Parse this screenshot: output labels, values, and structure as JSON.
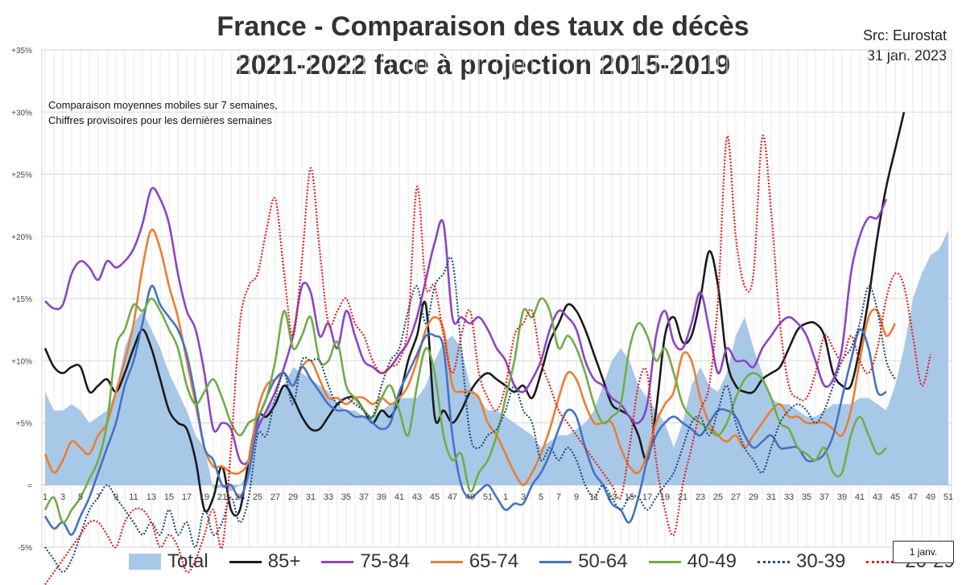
{
  "title_line1": "France - Comparaison des taux de décès",
  "title_line2": "2021-2022 face à projection 2015-2019",
  "source_line1": "Src: Eurostat",
  "source_line2": "31 jan. 2023",
  "note_line1": "Comparaison moyennes mobiles sur 7 semaines,",
  "note_line2": "Chiffres provisoires pour les dernières semaines",
  "year_marker": "1 janv.",
  "chart_data": {
    "type": "line",
    "y_unit": "%",
    "ylim": [
      -5,
      35
    ],
    "y_ticks": [
      {
        "v": 35,
        "label": "+35%"
      },
      {
        "v": 30,
        "label": "+30%"
      },
      {
        "v": 25,
        "label": "+25%"
      },
      {
        "v": 20,
        "label": "+20%"
      },
      {
        "v": 15,
        "label": "+15%"
      },
      {
        "v": 10,
        "label": "+10%"
      },
      {
        "v": 5,
        "label": "+5%"
      },
      {
        "v": 0,
        "label": "="
      },
      {
        "v": -5,
        "label": "-5%"
      }
    ],
    "x_tick_labels": [
      "1",
      "3",
      "5",
      "7",
      "9",
      "11",
      "13",
      "15",
      "17",
      "19",
      "21",
      "23",
      "25",
      "27",
      "29",
      "31",
      "33",
      "35",
      "37",
      "39",
      "41",
      "43",
      "45",
      "47",
      "49",
      "51",
      "1",
      "3",
      "5",
      "7",
      "9",
      "11",
      "13",
      "15",
      "17",
      "19",
      "21",
      "23",
      "25",
      "27",
      "29",
      "31",
      "33",
      "35",
      "37",
      "39",
      "41",
      "43",
      "45",
      "47",
      "49",
      "51"
    ],
    "grid": true,
    "legend_position": "bottom",
    "series": [
      {
        "name": "Total",
        "kind": "area",
        "color": "#a8c8e8",
        "values": [
          7.5,
          6,
          6,
          6.5,
          6,
          5,
          5.5,
          6,
          7.5,
          11,
          13,
          14,
          12.5,
          11,
          9,
          7.5,
          6,
          4,
          3,
          -0.3,
          -0.2,
          -0.5,
          0,
          1,
          5,
          6,
          7,
          8,
          9.5,
          9,
          8.5,
          8,
          7.5,
          6.5,
          6,
          6,
          5.5,
          5.5,
          6,
          6.5,
          7,
          7,
          7,
          8,
          10,
          11.5,
          12,
          11,
          8,
          7,
          6,
          6,
          5.5,
          5,
          4.5,
          4,
          3,
          3.5,
          4,
          4,
          4.5,
          5,
          6,
          8,
          10,
          11,
          10,
          8,
          7,
          6,
          5,
          3,
          5,
          8,
          9.5,
          8,
          7.5,
          9,
          12,
          13.5,
          11,
          9,
          7,
          6.5,
          6.5,
          6,
          5.5,
          5.5,
          6,
          6.5,
          6.5,
          6.5,
          7,
          7,
          6.5,
          6,
          8,
          11,
          15,
          17,
          18.5,
          19,
          20.5
        ]
      },
      {
        "name": "85+",
        "kind": "line",
        "color": "#1a1a1a",
        "dash": "",
        "values": [
          11,
          9.5,
          9,
          9.5,
          9.5,
          7.5,
          8,
          8.5,
          7.5,
          9,
          11,
          12.5,
          11,
          8.5,
          6,
          5,
          4.5,
          2,
          -2,
          -1,
          1.5,
          -2,
          -2,
          2,
          5.5,
          5.5,
          6.5,
          8,
          7,
          5.5,
          4.5,
          4.5,
          5.5,
          6.5,
          7,
          7,
          6,
          5,
          6,
          5.5,
          7,
          10,
          12,
          14.5,
          5.5,
          6,
          5,
          6,
          7.5,
          8.5,
          9,
          8.5,
          8,
          7.5,
          8,
          7,
          9,
          11.5,
          13,
          14.5,
          14,
          12.5,
          10.5,
          8.5,
          6.5,
          6,
          5.5,
          4,
          2,
          6,
          12,
          13.5,
          11.5,
          12,
          15,
          18.8,
          16,
          10,
          8,
          7.5,
          7.5,
          8.5,
          9,
          9.5,
          11,
          12.5,
          13,
          13,
          12,
          9,
          8,
          8,
          11,
          15,
          20,
          24,
          27,
          30
        ]
      },
      {
        "name": "75-84",
        "kind": "line",
        "color": "#8b44c8",
        "dash": "",
        "values": [
          14.8,
          14.2,
          14.5,
          17,
          18,
          17.5,
          16.5,
          18,
          17.5,
          18,
          19,
          21,
          23.8,
          23,
          21,
          17,
          14,
          12.5,
          9,
          4.5,
          5,
          4.5,
          2,
          2,
          4.5,
          6,
          7.5,
          9.5,
          12,
          16,
          15.5,
          12,
          13,
          11,
          14,
          12,
          10,
          9.5,
          9,
          9.5,
          10.5,
          11.5,
          13.5,
          16.5,
          19.5,
          21,
          13.5,
          13.5,
          13,
          13.5,
          12.5,
          11,
          10,
          8,
          7.5,
          8.5,
          10,
          12.5,
          14,
          13.5,
          12.5,
          10,
          8.5,
          8,
          7,
          6.5,
          5.5,
          5,
          6.5,
          12,
          14,
          11.5,
          11,
          13,
          15.5,
          12.5,
          9,
          11,
          10,
          10,
          9.5,
          11,
          12,
          13,
          13.5,
          13,
          12,
          10,
          8,
          8.5,
          11,
          17,
          20,
          21.5,
          21.5,
          23
        ]
      },
      {
        "name": "65-74",
        "kind": "line",
        "color": "#ed7d31",
        "dash": "",
        "values": [
          2.5,
          1,
          2,
          3.5,
          3,
          2.5,
          4,
          5,
          7.5,
          10,
          13,
          17.5,
          20.5,
          19,
          16,
          13.5,
          10,
          6.5,
          3,
          1.5,
          1.5,
          1,
          1,
          2,
          6,
          8,
          8.5,
          9,
          8,
          9.5,
          10,
          8.5,
          7,
          7,
          6.5,
          7,
          7,
          6.5,
          7,
          6.5,
          7,
          8,
          10,
          12.5,
          13.5,
          12.5,
          8,
          7.5,
          7.5,
          7,
          5,
          4,
          2.5,
          1,
          0,
          1,
          2.5,
          4.5,
          7,
          9,
          8.5,
          6.5,
          5,
          5,
          5,
          3,
          1.5,
          1,
          2.5,
          5,
          6.5,
          7.5,
          10.5,
          10,
          7,
          5,
          4,
          3.5,
          4,
          3,
          4,
          5,
          6,
          6.5,
          5.5,
          5.5,
          5,
          5,
          5,
          4.5,
          4,
          6,
          10,
          13.5,
          14,
          12,
          13
        ]
      },
      {
        "name": "50-64",
        "kind": "line",
        "color": "#4472c4",
        "dash": "",
        "values": [
          -2.5,
          -3.5,
          -3,
          -4,
          -2.5,
          -1,
          1,
          3,
          5,
          8,
          10,
          13,
          16,
          14.5,
          13.5,
          12.5,
          10.5,
          7,
          3,
          2,
          0,
          0,
          -1,
          1,
          5,
          7,
          8.5,
          9,
          8,
          9.5,
          8.5,
          7.5,
          6.5,
          6,
          6,
          5.5,
          5.5,
          5,
          4.5,
          5,
          7.5,
          9,
          10.5,
          12,
          12,
          11,
          4,
          0,
          -1,
          -0.5,
          0,
          -1,
          -2,
          -1.5,
          -1.5,
          0,
          1,
          2.5,
          4.5,
          6,
          5.5,
          3,
          1,
          0,
          -1.5,
          -2,
          -3,
          -1,
          2,
          4,
          5,
          5.5,
          5,
          4.5,
          4,
          5,
          6,
          6,
          5.5,
          4,
          3,
          3.5,
          4,
          3,
          3,
          3,
          2,
          2,
          2.5,
          4,
          7,
          10,
          12.5,
          11,
          7.5,
          7.5
        ]
      },
      {
        "name": "40-49",
        "kind": "line",
        "color": "#70ad47",
        "dash": "",
        "values": [
          -2,
          -1,
          -3,
          -2,
          -1,
          0.5,
          2,
          5,
          11,
          12.5,
          14.5,
          14,
          15,
          14,
          12.5,
          11,
          8,
          6.5,
          7.5,
          8.5,
          7,
          5,
          4,
          5,
          5.5,
          7,
          10,
          14,
          11,
          12,
          13.5,
          10,
          10,
          11.5,
          8,
          7,
          6,
          5.5,
          7,
          8,
          6,
          4,
          8,
          11,
          9,
          4,
          2,
          2.5,
          -0.5,
          1,
          2,
          4,
          7,
          10,
          14,
          13.5,
          15,
          14,
          11,
          12,
          11,
          9,
          6.5,
          5,
          5.5,
          6.5,
          11,
          13,
          12,
          10,
          11,
          9,
          6.5,
          5.5,
          5,
          4.5,
          4,
          5,
          7,
          8.5,
          9,
          8.5,
          7,
          5,
          4.5,
          3,
          2.5,
          2,
          3,
          1,
          1,
          4,
          5.5,
          4,
          2.5,
          3
        ]
      },
      {
        "name": "30-39",
        "kind": "line",
        "color": "#1f4e79",
        "dash": "2,2",
        "values": [
          -5,
          -6,
          -7,
          -6,
          -4,
          -2,
          -1,
          0,
          -1,
          -2,
          -3,
          -4,
          -3,
          -4,
          -2,
          -4,
          -3,
          -5,
          -2,
          -4,
          -3,
          -1,
          -3,
          -1,
          4,
          4,
          7,
          9,
          6.5,
          10,
          10,
          10,
          8,
          6.5,
          7,
          6.5,
          6,
          5.5,
          8,
          10,
          11,
          14,
          16,
          13,
          16,
          17,
          18,
          11,
          4,
          3,
          4,
          4.5,
          6,
          8,
          6,
          5,
          2,
          3,
          2,
          3,
          2,
          0,
          -1,
          0,
          -1,
          -2,
          -1,
          -1,
          -2,
          -1,
          0,
          1,
          3,
          5,
          5.5,
          4,
          6,
          8,
          5,
          3,
          2,
          1,
          3,
          5,
          6,
          6.5,
          6,
          5,
          6,
          8,
          10,
          11,
          13,
          16,
          14,
          10,
          8.5
        ]
      },
      {
        "name": "20-29",
        "kind": "line",
        "color": "#e0201b",
        "dash": "2,2",
        "values": [
          -8,
          -7,
          -6,
          -5,
          -4,
          -3,
          -3,
          -4,
          -5,
          -3,
          -2,
          -2,
          -3,
          -5,
          -4,
          -5,
          -7,
          -6,
          -4,
          -2,
          -5,
          3,
          13,
          16,
          17,
          20.5,
          23,
          17,
          12,
          18,
          25.5,
          19,
          13,
          14,
          15,
          13,
          12,
          10,
          9,
          9.5,
          10,
          13,
          24,
          16,
          16,
          12,
          9,
          12,
          14,
          9,
          7,
          6,
          8,
          12,
          13,
          14,
          10,
          8,
          6,
          5,
          4,
          3,
          2,
          1,
          0,
          -1,
          3,
          8,
          9,
          2,
          -2,
          -4,
          0,
          3,
          6,
          8,
          15,
          28,
          20,
          16,
          17,
          28,
          22,
          13,
          8,
          7,
          7,
          9,
          12,
          11,
          10,
          12,
          10,
          9,
          11,
          15,
          17,
          16,
          12,
          8,
          10.5
        ]
      }
    ]
  }
}
